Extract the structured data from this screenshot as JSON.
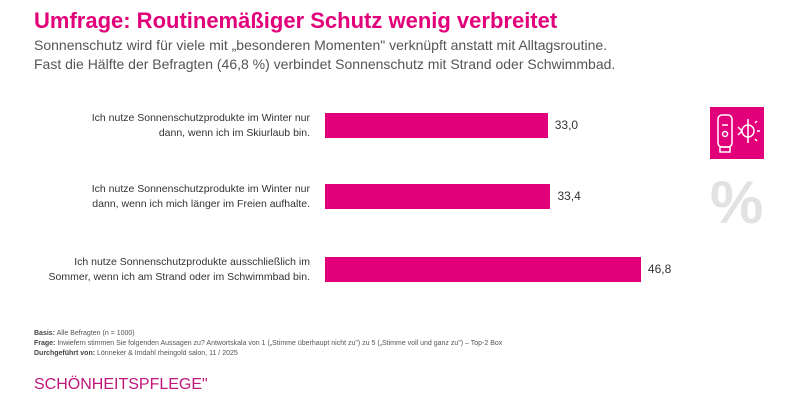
{
  "header": {
    "title": "Umfrage: Routinemäßiger Schutz wenig verbreitet",
    "subtitle_1": "Sonnenschutz wird für viele mit „besonderen Momenten\" verknüpft anstatt mit Alltagsroutine.",
    "subtitle_2": "Fast die Hälfte der Befragten (46,8 %) verbindet Sonnenschutz mit Strand oder Schwimmbad."
  },
  "chart_data": {
    "type": "bar",
    "orientation": "horizontal",
    "categories": [
      [
        "Ich nutze Sonnenschutzprodukte im Winter nur",
        "dann, wenn ich im Skiurlaub bin."
      ],
      [
        "Ich nutze Sonnenschutzprodukte im Winter nur",
        "dann, wenn ich mich länger im Freien aufhalte."
      ],
      [
        "Ich nutze Sonnenschutzprodukte ausschließlich im",
        "Sommer, wenn ich am Strand oder im Schwimmbad bin."
      ]
    ],
    "values": [
      33.0,
      33.4,
      46.8
    ],
    "value_labels": [
      "33,0",
      "33,4",
      "46,8"
    ],
    "bar_color": "#e2007a",
    "grid": false
  },
  "footer": {
    "basis_label": "Basis:",
    "basis": "Alle Befragten (n = 1000)",
    "frage_label": "Frage:",
    "frage": "Inwiefern stimmen Sie folgenden Aussagen zu? Antwortskala von 1 („Stimme überhaupt nicht zu\") zu 5  („Stimme voll und ganz zu\") – Top-2 Box",
    "durch_label": "Durchgeführt von:",
    "durch": "Lönneker & Imdahl rheingold salon, 11 / 2025"
  },
  "brand": "SCHÖNHEITSPFLEGE\"",
  "icons": {
    "product": "sunscreen-winter-icon",
    "percent": "%"
  }
}
